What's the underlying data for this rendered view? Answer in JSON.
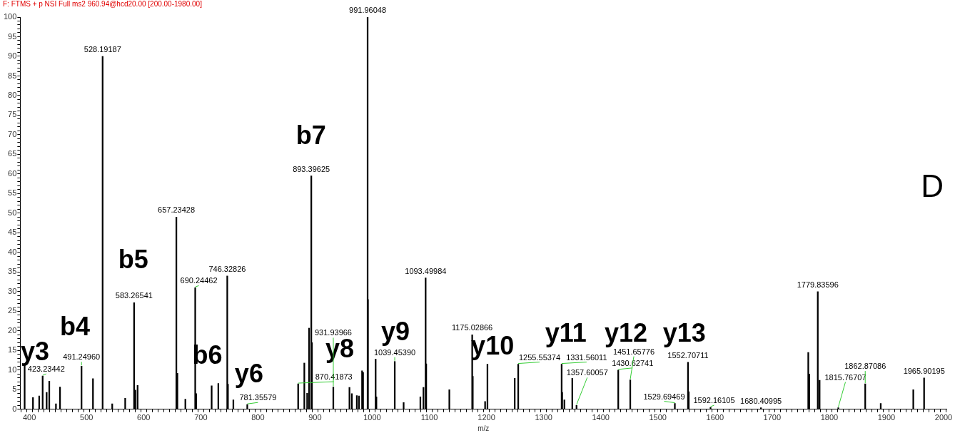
{
  "chart_data": {
    "type": "bar",
    "title": "F: FTMS + p NSI Full ms2 960.94@hcd20.00 [200.00-1980.00]",
    "xlabel": "m/z",
    "color": "#000000",
    "grid": false,
    "legend": false,
    "x": [
      391.7,
      406.3,
      417.2,
      423.23442,
      430.2,
      434.8,
      446.5,
      453.6,
      491.2496,
      511.3,
      528.19187,
      545,
      567.7,
      583.26541,
      585.5,
      589.4,
      657.23428,
      659,
      673,
      690.24462,
      692,
      719,
      730.7,
      746.32826,
      747.5,
      757,
      781.35579,
      870.41873,
      881.2,
      886.2,
      889.5,
      893.39625,
      894.5,
      931.93966,
      960.2,
      964.4,
      973.1,
      976.9,
      982.3,
      984,
      991.96048,
      992.5,
      1006,
      1007.3,
      1039.4539,
      1055,
      1084.3,
      1089.7,
      1093.49984,
      1094.5,
      1135,
      1175.02866,
      1176,
      1197.6,
      1201.7,
      1249.4,
      1255.55374,
      1331.56011,
      1332.5,
      1336.4,
      1350.2,
      1357.60057,
      1430.62741,
      1451.65776,
      1529.69469,
      1552.70711,
      1554,
      1592.16105,
      1680.40995,
      1763.2,
      1765,
      1779.83596,
      1783,
      1815.76707,
      1862.87086,
      1890,
      1947,
      1965.90195
    ],
    "values": [
      11.7,
      3,
      3.4,
      8.5,
      4.3,
      7.2,
      1.4,
      5.7,
      11,
      7.8,
      90,
      1.4,
      2.8,
      27.2,
      4.9,
      6.1,
      49,
      9.2,
      2.6,
      31,
      4,
      6,
      6.6,
      34,
      6.4,
      2.4,
      1.2,
      6.5,
      11.8,
      4.1,
      20.7,
      59.5,
      17,
      5.7,
      5.6,
      4,
      3.5,
      3.4,
      9.8,
      9.4,
      100,
      28,
      12.8,
      3.2,
      12.2,
      1.7,
      3.2,
      5.6,
      33.5,
      11.6,
      5,
      19,
      8.4,
      2,
      11.5,
      7.9,
      11.5,
      11.5,
      4.3,
      2.4,
      7.9,
      1,
      10,
      7.5,
      1.5,
      12,
      4.5,
      0.5,
      0.4,
      14.5,
      9,
      30,
      7.4,
      0.4,
      6.5,
      1.5,
      5,
      8
    ],
    "xlim": [
      389,
      2000
    ],
    "xticks": [
      {
        "value": 390,
        "label": null
      },
      400,
      {
        "value": 410,
        "label": null
      },
      {
        "value": 420,
        "label": null
      },
      {
        "value": 430,
        "label": null
      },
      {
        "value": 440,
        "label": null
      },
      {
        "value": 450,
        "label": null
      },
      {
        "value": 460,
        "label": null
      },
      {
        "value": 470,
        "label": null
      },
      {
        "value": 480,
        "label": null
      },
      {
        "value": 490,
        "label": null
      },
      500,
      {
        "value": 510,
        "label": null
      },
      {
        "value": 520,
        "label": null
      },
      {
        "value": 530,
        "label": null
      },
      {
        "value": 540,
        "label": null
      },
      {
        "value": 550,
        "label": null
      },
      {
        "value": 560,
        "label": null
      },
      {
        "value": 570,
        "label": null
      },
      {
        "value": 580,
        "label": null
      },
      {
        "value": 590,
        "label": null
      },
      600,
      {
        "value": 610,
        "label": null
      },
      {
        "value": 620,
        "label": null
      },
      {
        "value": 630,
        "label": null
      },
      {
        "value": 640,
        "label": null
      },
      {
        "value": 650,
        "label": null
      },
      {
        "value": 660,
        "label": null
      },
      {
        "value": 670,
        "label": null
      },
      {
        "value": 680,
        "label": null
      },
      {
        "value": 690,
        "label": null
      },
      700,
      {
        "value": 710,
        "label": null
      },
      {
        "value": 720,
        "label": null
      },
      {
        "value": 730,
        "label": null
      },
      {
        "value": 740,
        "label": null
      },
      {
        "value": 750,
        "label": null
      },
      {
        "value": 760,
        "label": null
      },
      {
        "value": 770,
        "label": null
      },
      {
        "value": 780,
        "label": null
      },
      {
        "value": 790,
        "label": null
      },
      800,
      {
        "value": 810,
        "label": null
      },
      {
        "value": 820,
        "label": null
      },
      {
        "value": 830,
        "label": null
      },
      {
        "value": 840,
        "label": null
      },
      {
        "value": 850,
        "label": null
      },
      {
        "value": 860,
        "label": null
      },
      {
        "value": 870,
        "label": null
      },
      {
        "value": 880,
        "label": null
      },
      {
        "value": 890,
        "label": null
      },
      900,
      {
        "value": 910,
        "label": null
      },
      {
        "value": 920,
        "label": null
      },
      {
        "value": 930,
        "label": null
      },
      {
        "value": 940,
        "label": null
      },
      {
        "value": 950,
        "label": null
      },
      {
        "value": 960,
        "label": null
      },
      {
        "value": 970,
        "label": null
      },
      {
        "value": 980,
        "label": null
      },
      {
        "value": 990,
        "label": null
      },
      1000,
      {
        "value": 1010,
        "label": null
      },
      {
        "value": 1020,
        "label": null
      },
      {
        "value": 1030,
        "label": null
      },
      {
        "value": 1040,
        "label": null
      },
      {
        "value": 1050,
        "label": null
      },
      {
        "value": 1060,
        "label": null
      },
      {
        "value": 1070,
        "label": null
      },
      {
        "value": 1080,
        "label": null
      },
      {
        "value": 1090,
        "label": null
      },
      1100,
      {
        "value": 1110,
        "label": null
      },
      {
        "value": 1120,
        "label": null
      },
      {
        "value": 1130,
        "label": null
      },
      {
        "value": 1140,
        "label": null
      },
      {
        "value": 1150,
        "label": null
      },
      {
        "value": 1160,
        "label": null
      },
      {
        "value": 1170,
        "label": null
      },
      {
        "value": 1180,
        "label": null
      },
      {
        "value": 1190,
        "label": null
      },
      1200,
      {
        "value": 1210,
        "label": null
      },
      {
        "value": 1220,
        "label": null
      },
      {
        "value": 1230,
        "label": null
      },
      {
        "value": 1240,
        "label": null
      },
      {
        "value": 1250,
        "label": null
      },
      {
        "value": 1260,
        "label": null
      },
      {
        "value": 1270,
        "label": null
      },
      {
        "value": 1280,
        "label": null
      },
      {
        "value": 1290,
        "label": null
      },
      1300,
      {
        "value": 1310,
        "label": null
      },
      {
        "value": 1320,
        "label": null
      },
      {
        "value": 1330,
        "label": null
      },
      {
        "value": 1340,
        "label": null
      },
      {
        "value": 1350,
        "label": null
      },
      {
        "value": 1360,
        "label": null
      },
      {
        "value": 1370,
        "label": null
      },
      {
        "value": 1380,
        "label": null
      },
      {
        "value": 1390,
        "label": null
      },
      1400,
      {
        "value": 1410,
        "label": null
      },
      {
        "value": 1420,
        "label": null
      },
      {
        "value": 1430,
        "label": null
      },
      {
        "value": 1440,
        "label": null
      },
      {
        "value": 1450,
        "label": null
      },
      {
        "value": 1460,
        "label": null
      },
      {
        "value": 1470,
        "label": null
      },
      {
        "value": 1480,
        "label": null
      },
      {
        "value": 1490,
        "label": null
      },
      1500,
      {
        "value": 1510,
        "label": null
      },
      {
        "value": 1520,
        "label": null
      },
      {
        "value": 1530,
        "label": null
      },
      {
        "value": 1540,
        "label": null
      },
      {
        "value": 1550,
        "label": null
      },
      {
        "value": 1560,
        "label": null
      },
      {
        "value": 1570,
        "label": null
      },
      {
        "value": 1580,
        "label": null
      },
      {
        "value": 1590,
        "label": null
      },
      1600,
      {
        "value": 1610,
        "label": null
      },
      {
        "value": 1620,
        "label": null
      },
      {
        "value": 1630,
        "label": null
      },
      {
        "value": 1640,
        "label": null
      },
      {
        "value": 1650,
        "label": null
      },
      {
        "value": 1660,
        "label": null
      },
      {
        "value": 1670,
        "label": null
      },
      {
        "value": 1680,
        "label": null
      },
      {
        "value": 1690,
        "label": null
      },
      1700,
      {
        "value": 1710,
        "label": null
      },
      {
        "value": 1720,
        "label": null
      },
      {
        "value": 1730,
        "label": null
      },
      {
        "value": 1740,
        "label": null
      },
      {
        "value": 1750,
        "label": null
      },
      {
        "value": 1760,
        "label": null
      },
      {
        "value": 1770,
        "label": null
      },
      {
        "value": 1780,
        "label": null
      },
      {
        "value": 1790,
        "label": null
      },
      1800,
      {
        "value": 1810,
        "label": null
      },
      {
        "value": 1820,
        "label": null
      },
      {
        "value": 1830,
        "label": null
      },
      {
        "value": 1840,
        "label": null
      },
      {
        "value": 1850,
        "label": null
      },
      {
        "value": 1860,
        "label": null
      },
      {
        "value": 1870,
        "label": null
      },
      {
        "value": 1880,
        "label": null
      },
      {
        "value": 1890,
        "label": null
      },
      1900,
      {
        "value": 1910,
        "label": null
      },
      {
        "value": 1920,
        "label": null
      },
      {
        "value": 1930,
        "label": null
      },
      {
        "value": 1940,
        "label": null
      },
      {
        "value": 1950,
        "label": null
      },
      {
        "value": 1960,
        "label": null
      },
      {
        "value": 1970,
        "label": null
      },
      {
        "value": 1980,
        "label": null
      },
      {
        "value": 1990,
        "label": null
      },
      2000
    ],
    "ylim": [
      0,
      100
    ],
    "yticks": [
      0,
      {
        "value": 1,
        "label": null
      },
      {
        "value": 2,
        "label": null
      },
      {
        "value": 3,
        "label": null
      },
      {
        "value": 4,
        "label": null
      },
      5,
      {
        "value": 6,
        "label": null
      },
      {
        "value": 7,
        "label": null
      },
      {
        "value": 8,
        "label": null
      },
      {
        "value": 9,
        "label": null
      },
      10,
      {
        "value": 11,
        "label": null
      },
      {
        "value": 12,
        "label": null
      },
      {
        "value": 13,
        "label": null
      },
      {
        "value": 14,
        "label": null
      },
      15,
      {
        "value": 16,
        "label": null
      },
      {
        "value": 17,
        "label": null
      },
      {
        "value": 18,
        "label": null
      },
      {
        "value": 19,
        "label": null
      },
      20,
      {
        "value": 21,
        "label": null
      },
      {
        "value": 22,
        "label": null
      },
      {
        "value": 23,
        "label": null
      },
      {
        "value": 24,
        "label": null
      },
      25,
      {
        "value": 26,
        "label": null
      },
      {
        "value": 27,
        "label": null
      },
      {
        "value": 28,
        "label": null
      },
      {
        "value": 29,
        "label": null
      },
      30,
      {
        "value": 31,
        "label": null
      },
      {
        "value": 32,
        "label": null
      },
      {
        "value": 33,
        "label": null
      },
      {
        "value": 34,
        "label": null
      },
      35,
      {
        "value": 36,
        "label": null
      },
      {
        "value": 37,
        "label": null
      },
      {
        "value": 38,
        "label": null
      },
      {
        "value": 39,
        "label": null
      },
      40,
      {
        "value": 41,
        "label": null
      },
      {
        "value": 42,
        "label": null
      },
      {
        "value": 43,
        "label": null
      },
      {
        "value": 44,
        "label": null
      },
      45,
      {
        "value": 46,
        "label": null
      },
      {
        "value": 47,
        "label": null
      },
      {
        "value": 48,
        "label": null
      },
      {
        "value": 49,
        "label": null
      },
      50,
      {
        "value": 51,
        "label": null
      },
      {
        "value": 52,
        "label": null
      },
      {
        "value": 53,
        "label": null
      },
      {
        "value": 54,
        "label": null
      },
      55,
      {
        "value": 56,
        "label": null
      },
      {
        "value": 57,
        "label": null
      },
      {
        "value": 58,
        "label": null
      },
      {
        "value": 59,
        "label": null
      },
      60,
      {
        "value": 61,
        "label": null
      },
      {
        "value": 62,
        "label": null
      },
      {
        "value": 63,
        "label": null
      },
      {
        "value": 64,
        "label": null
      },
      65,
      {
        "value": 66,
        "label": null
      },
      {
        "value": 67,
        "label": null
      },
      {
        "value": 68,
        "label": null
      },
      {
        "value": 69,
        "label": null
      },
      70,
      {
        "value": 71,
        "label": null
      },
      {
        "value": 72,
        "label": null
      },
      {
        "value": 73,
        "label": null
      },
      {
        "value": 74,
        "label": null
      },
      75,
      {
        "value": 76,
        "label": null
      },
      {
        "value": 77,
        "label": null
      },
      {
        "value": 78,
        "label": null
      },
      {
        "value": 79,
        "label": null
      },
      80,
      {
        "value": 81,
        "label": null
      },
      {
        "value": 82,
        "label": null
      },
      {
        "value": 83,
        "label": null
      },
      {
        "value": 84,
        "label": null
      },
      85,
      {
        "value": 86,
        "label": null
      },
      {
        "value": 87,
        "label": null
      },
      {
        "value": 88,
        "label": null
      },
      {
        "value": 89,
        "label": null
      },
      90,
      {
        "value": 91,
        "label": null
      },
      {
        "value": 92,
        "label": null
      },
      {
        "value": 93,
        "label": null
      },
      {
        "value": 94,
        "label": null
      },
      95,
      {
        "value": 96,
        "label": null
      },
      {
        "value": 97,
        "label": null
      },
      {
        "value": 98,
        "label": null
      },
      {
        "value": 99,
        "label": null
      },
      100
    ],
    "annotations": [
      "y3",
      "b4",
      "b5",
      "b6",
      "y6",
      "b7",
      "y8",
      "y9",
      "y10",
      "y11",
      "y12",
      "y13",
      {
        "text": "423.23442",
        "x": 423.23442,
        "y": 8.5
      },
      {
        "text": "491.24960",
        "x": 491.2496,
        "y": 11
      },
      {
        "text": "528.19187",
        "x": 528.19187,
        "y": 90
      },
      {
        "text": "583.26541",
        "x": 583.26541,
        "y": 27.2
      },
      {
        "text": "657.23428",
        "x": 657.23428,
        "y": 49
      },
      {
        "text": "690.24462",
        "x": 690.24462,
        "y": 31
      },
      {
        "text": "746.32826",
        "x": 746.32826,
        "y": 34
      },
      {
        "text": "781.35579",
        "x": 781.35579,
        "y": 1.2
      },
      {
        "text": "870.41873",
        "x": 870.41873,
        "y": 6.5
      },
      {
        "text": "893.39625",
        "x": 893.39625,
        "y": 59.5
      },
      {
        "text": "931.93966",
        "x": 931.93966,
        "y": 5.7
      },
      {
        "text": "991.96048",
        "x": 991.96048,
        "y": 100
      },
      {
        "text": "1039.45390",
        "x": 1039.4539,
        "y": 12.2
      },
      {
        "text": "1093.49984",
        "x": 1093.49984,
        "y": 33.5
      },
      {
        "text": "1175.02866",
        "x": 1175.02866,
        "y": 19
      },
      {
        "text": "1255.55374",
        "x": 1255.55374,
        "y": 11.5
      },
      {
        "text": "1331.56011",
        "x": 1331.56011,
        "y": 11.5
      },
      {
        "text": "1357.60057",
        "x": 1357.60057,
        "y": 1
      },
      {
        "text": "1430.62741",
        "x": 1430.62741,
        "y": 10
      },
      {
        "text": "1451.65776",
        "x": 1451.65776,
        "y": 7.5
      },
      {
        "text": "1529.69469",
        "x": 1529.69469,
        "y": 1.5
      },
      {
        "text": "1552.70711",
        "x": 1552.70711,
        "y": 12
      },
      {
        "text": "1592.16105",
        "x": 1592.16105,
        "y": 0.5
      },
      {
        "text": "1680.40995",
        "x": 1680.40995,
        "y": 0.4
      },
      {
        "text": "1779.83596",
        "x": 1779.83596,
        "y": 30
      },
      {
        "text": "1815.76707",
        "x": 1815.76707,
        "y": 0.4
      },
      {
        "text": "1862.87086",
        "x": 1862.87086,
        "y": 6.5
      },
      {
        "text": "1965.90195",
        "x": 1965.90195,
        "y": 8
      },
      "D"
    ]
  }
}
